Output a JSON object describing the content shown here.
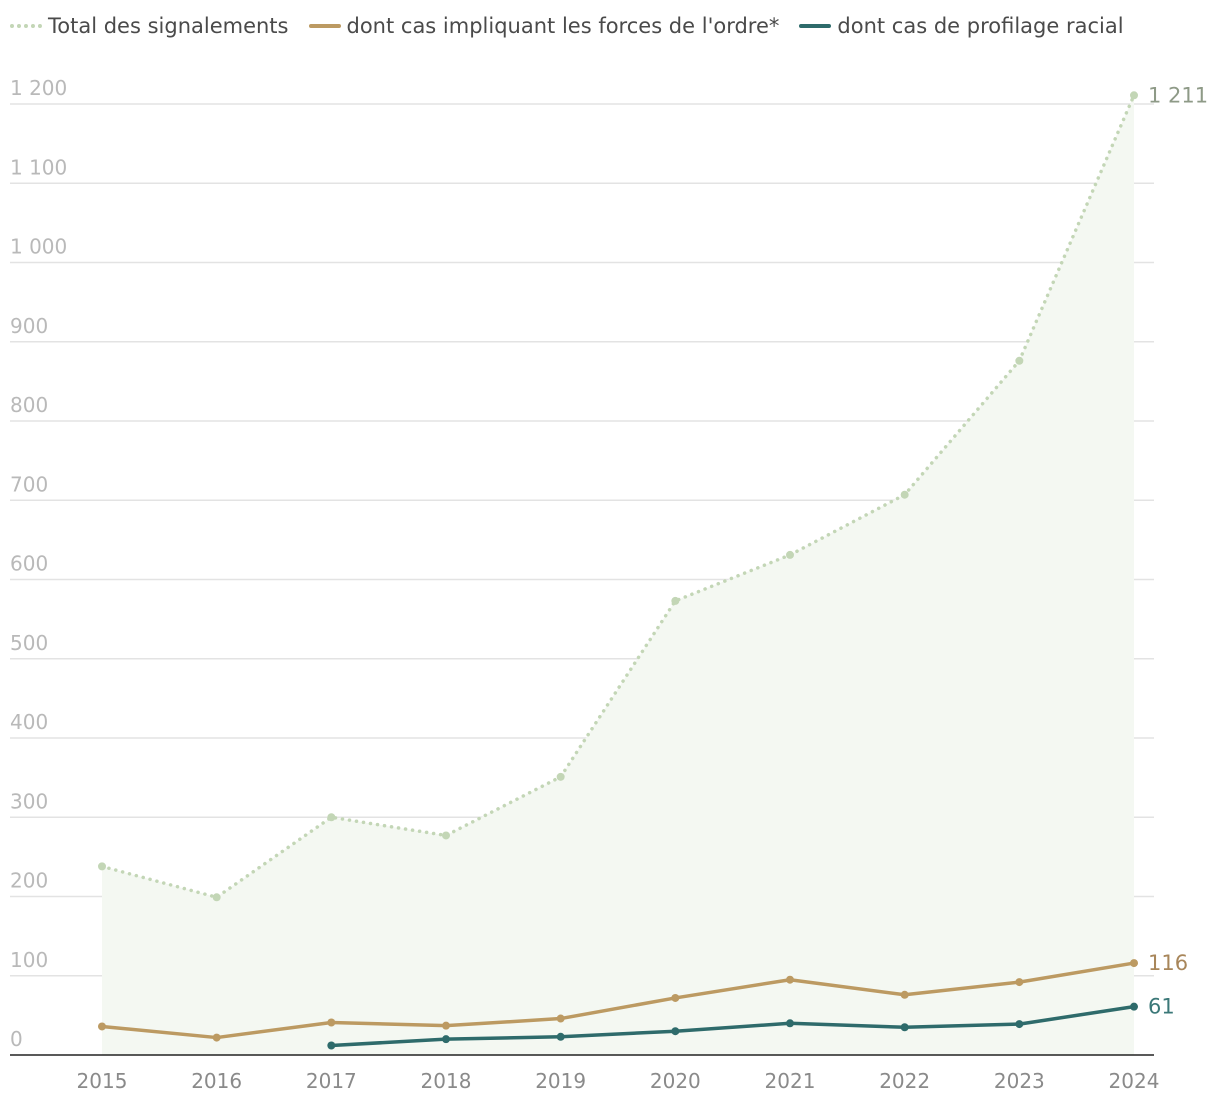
{
  "chart_data": {
    "type": "line",
    "title": "",
    "xlabel": "",
    "ylabel": "",
    "x": [
      "2015",
      "2016",
      "2017",
      "2018",
      "2019",
      "2020",
      "2021",
      "2022",
      "2023",
      "2024"
    ],
    "ylim": [
      0,
      1200
    ],
    "yticks": [
      0,
      100,
      200,
      300,
      400,
      500,
      600,
      700,
      800,
      900,
      1000,
      1100,
      1200
    ],
    "ytick_labels": [
      "0",
      "100",
      "200",
      "300",
      "400",
      "500",
      "600",
      "700",
      "800",
      "900",
      "1 000",
      "1 100",
      "1 200"
    ],
    "grid": true,
    "legend_position": "top-left",
    "series": [
      {
        "name": "Total des signalements",
        "style": "dotted-area",
        "color": "#c3d6b6",
        "fill_color": "#f4f8f2",
        "values": [
          238,
          199,
          300,
          277,
          351,
          573,
          631,
          707,
          876,
          1211
        ],
        "end_label": "1 211",
        "end_label_color": "#8e9a87"
      },
      {
        "name": "dont cas impliquant les forces de l'ordre*",
        "style": "solid",
        "color": "#bc9a62",
        "values": [
          36,
          22,
          41,
          37,
          46,
          72,
          95,
          76,
          92,
          116
        ],
        "end_label": "116",
        "end_label_color": "#a8865a"
      },
      {
        "name": "dont cas de profilage racial",
        "style": "solid",
        "color": "#2e6b6b",
        "values": [
          null,
          null,
          12,
          20,
          23,
          30,
          40,
          35,
          39,
          61
        ],
        "end_label": "61",
        "end_label_color": "#3b7878"
      }
    ]
  }
}
